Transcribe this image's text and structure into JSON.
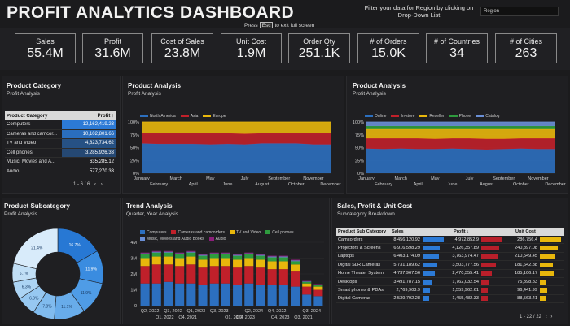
{
  "header": {
    "title": "PROFIT ANALYTICS DASHBOARD",
    "filter_text": "Filter your data for Region by clicking on Drop-Down List",
    "region_value": "Region",
    "esc_pre": "Press",
    "esc_key": "Esc",
    "esc_post": "to exit full screen"
  },
  "kpis": [
    {
      "label": "Sales",
      "value": "55.4M"
    },
    {
      "label": "Profit",
      "value": "31.6M"
    },
    {
      "label": "Cost of Sales",
      "value": "23.8M"
    },
    {
      "label": "Unit Cost",
      "value": "1.9M"
    },
    {
      "label": "Order Qty",
      "value": "251.1K"
    },
    {
      "label": "# of Orders",
      "value": "15.0K"
    },
    {
      "label": "# of Countries",
      "value": "34"
    },
    {
      "label": "# of Cities",
      "value": "263"
    }
  ],
  "product_category": {
    "title": "Product Category",
    "subtitle": "Profit Analysis",
    "col1": "Product Category",
    "col2": "Profit ↑",
    "rows": [
      {
        "name": "Computers",
        "value": "12,162,419.23",
        "level": 1.0
      },
      {
        "name": "Cameras and camcor...",
        "value": "10,102,801.66",
        "level": 0.83
      },
      {
        "name": "TV and Video",
        "value": "4,823,734.62",
        "level": 0.4
      },
      {
        "name": "Cell phones",
        "value": "3,285,926.33",
        "level": 0.27
      },
      {
        "name": "Music, Movies and A...",
        "value": "635,285.12",
        "level": 0.05
      },
      {
        "name": "Audio",
        "value": "577,270.33",
        "level": 0.05
      }
    ],
    "pager": "1 - 6 / 6"
  },
  "product_analysis_region": {
    "title": "Product Analysis",
    "subtitle": "Profit Analysis",
    "chart_data": {
      "type": "area",
      "stacked_percent": true,
      "x": [
        "January",
        "February",
        "March",
        "April",
        "May",
        "June",
        "July",
        "August",
        "September",
        "October",
        "November",
        "December"
      ],
      "ylim": [
        0,
        100
      ],
      "yticks": [
        "0%",
        "25%",
        "50%",
        "75%",
        "100%"
      ],
      "legend": "top-left",
      "series": [
        {
          "name": "North America",
          "color": "#2c6fbf",
          "values": [
            58,
            57,
            57,
            57,
            56,
            57,
            56,
            58,
            58,
            58,
            56,
            56
          ]
        },
        {
          "name": "Asia",
          "color": "#c0202a",
          "values": [
            20,
            21,
            21,
            21,
            22,
            21,
            21,
            20,
            20,
            20,
            22,
            22
          ]
        },
        {
          "name": "Europe",
          "color": "#e8b70c",
          "values": [
            22,
            22,
            22,
            22,
            22,
            22,
            23,
            22,
            22,
            22,
            22,
            22
          ]
        }
      ]
    }
  },
  "product_analysis_channel": {
    "title": "Product Analysis",
    "subtitle": "Profit Analysis",
    "chart_data": {
      "type": "area",
      "stacked_percent": true,
      "x": [
        "January",
        "February",
        "March",
        "April",
        "May",
        "June",
        "July",
        "August",
        "September",
        "October",
        "November",
        "December"
      ],
      "ylim": [
        0,
        100
      ],
      "yticks": [
        "0%",
        "25%",
        "50%",
        "75%",
        "100%"
      ],
      "legend": "top-left",
      "series": [
        {
          "name": "Online",
          "color": "#2c6fbf",
          "values": [
            48,
            47,
            48,
            47,
            47,
            48,
            47,
            46,
            47,
            48,
            47,
            47
          ]
        },
        {
          "name": "In-store",
          "color": "#c0202a",
          "values": [
            20,
            21,
            20,
            21,
            20,
            20,
            21,
            21,
            20,
            20,
            21,
            21
          ]
        },
        {
          "name": "Reseller",
          "color": "#e8b70c",
          "values": [
            18,
            18,
            18,
            18,
            19,
            18,
            18,
            19,
            19,
            18,
            18,
            18
          ]
        },
        {
          "name": "Phone",
          "color": "#2e9b3e",
          "values": [
            6,
            6,
            6,
            6,
            6,
            6,
            6,
            6,
            6,
            6,
            6,
            6
          ]
        },
        {
          "name": "Catalog",
          "color": "#6a8fd6",
          "values": [
            8,
            8,
            8,
            8,
            8,
            8,
            8,
            8,
            8,
            8,
            8,
            8
          ]
        }
      ]
    }
  },
  "product_subcategory": {
    "title": "Product Subcategory",
    "subtitle": "Profit Analysis",
    "chart_data": {
      "type": "pie",
      "donut": true,
      "slices": [
        {
          "label": "16.7%",
          "value": 16.7,
          "color": "#2778d4"
        },
        {
          "label": "11.9%",
          "value": 11.9,
          "color": "#3a8ce0"
        },
        {
          "label": "11.9%",
          "value": 11.9,
          "color": "#4f9ce6"
        },
        {
          "label": "11.1%",
          "value": 11.1,
          "color": "#68acea"
        },
        {
          "label": "7.8%",
          "value": 7.8,
          "color": "#80bbee"
        },
        {
          "label": "6.9%",
          "value": 6.9,
          "color": "#97c8f1"
        },
        {
          "label": "6.3%",
          "value": 6.3,
          "color": "#acd4f4"
        },
        {
          "label": "6.7%",
          "value": 6.7,
          "color": "#c1dff6"
        },
        {
          "label": "21.4%",
          "value": 21.4,
          "color": "#d8ebfa"
        }
      ]
    }
  },
  "trend_analysis": {
    "title": "Trend Analysis",
    "subtitle": "Quarter, Year Analysis",
    "chart_data": {
      "type": "bar",
      "stacked": true,
      "ylim": [
        0,
        4
      ],
      "yticks": [
        "0",
        "1M",
        "2M",
        "3M",
        "4M"
      ],
      "legend": "top",
      "categories": [
        "Q1",
        "Q2",
        "Q3",
        "Q4",
        "Q1",
        "Q2",
        "Q3",
        "Q4",
        "Q1",
        "Q2",
        "Q3",
        "Q4",
        "Q1",
        "Q2",
        "Q3",
        "Q4"
      ],
      "xlabels_top": [
        "Q2, 2022",
        "Q3, 2022",
        "Q1, 2023",
        "Q3, 2023",
        "Q2, 2024",
        "Q4, 2022",
        "Q3, 2024"
      ],
      "xlabels_bottom": [
        "Q1, 2022",
        "Q4, 2021",
        "Q1, 2024",
        "Q2, 2023",
        "Q4, 2023",
        "Q3, 2021"
      ],
      "series": [
        {
          "name": "Computers",
          "color": "#2c6fbf",
          "values": [
            1.4,
            1.4,
            1.5,
            1.4,
            1.4,
            1.3,
            1.4,
            1.4,
            1.3,
            1.4,
            1.3,
            1.3,
            1.3,
            1.2,
            0.7,
            0.6
          ]
        },
        {
          "name": "Cameras and camcorders",
          "color": "#c0202a",
          "values": [
            1.1,
            1.2,
            1.1,
            1.1,
            1.2,
            1.1,
            1.1,
            1.1,
            1.1,
            1.1,
            1.1,
            1.0,
            1.0,
            1.0,
            0.5,
            0.4
          ]
        },
        {
          "name": "TV and Video",
          "color": "#e8b70c",
          "values": [
            0.5,
            0.5,
            0.5,
            0.5,
            0.5,
            0.5,
            0.5,
            0.5,
            0.5,
            0.5,
            0.5,
            0.5,
            0.5,
            0.4,
            0.2,
            0.2
          ]
        },
        {
          "name": "Cell phones",
          "color": "#2e9b3e",
          "values": [
            0.25,
            0.25,
            0.25,
            0.25,
            0.25,
            0.25,
            0.25,
            0.25,
            0.25,
            0.25,
            0.25,
            0.25,
            0.25,
            0.2,
            0.1,
            0.1
          ]
        },
        {
          "name": "Music, Movies and Audio Books",
          "color": "#6a8fd6",
          "values": [
            0.05,
            0.05,
            0.05,
            0.05,
            0.05,
            0.05,
            0.05,
            0.05,
            0.05,
            0.05,
            0.05,
            0.05,
            0.05,
            0.05,
            0.03,
            0.03
          ]
        },
        {
          "name": "Audio",
          "color": "#8b1f7a",
          "values": [
            0.05,
            0.05,
            0.05,
            0.05,
            0.05,
            0.05,
            0.05,
            0.05,
            0.05,
            0.05,
            0.05,
            0.05,
            0.05,
            0.05,
            0.03,
            0.03
          ]
        }
      ]
    }
  },
  "sales_profit": {
    "title": "Sales, Profit & Unit Cost",
    "subtitle": "Subcategory Breakdown",
    "col1": "Product Sub Category",
    "col2": "Sales",
    "col3": "Profit ↓",
    "col4": "Unit Cost",
    "rows": [
      {
        "name": "Camcorders",
        "sales": "8,456,120.92",
        "sales_level": 1.0,
        "profit": "4,972,852.9",
        "profit_level": 1.0,
        "unit": "286,756.4",
        "unit_level": 1.0
      },
      {
        "name": "Projectors & Screens",
        "sales": "6,916,598.29",
        "sales_level": 0.82,
        "profit": "4,126,357.89",
        "profit_level": 0.83,
        "unit": "240,897.08",
        "unit_level": 0.84
      },
      {
        "name": "Laptops",
        "sales": "6,403,174.09",
        "sales_level": 0.76,
        "profit": "3,763,974.47",
        "profit_level": 0.76,
        "unit": "210,549.45",
        "unit_level": 0.73
      },
      {
        "name": "Digital SLR Cameras",
        "sales": "5,731,189.62",
        "sales_level": 0.68,
        "profit": "3,503,777.56",
        "profit_level": 0.7,
        "unit": "181,642.88",
        "unit_level": 0.63
      },
      {
        "name": "Home Theater System",
        "sales": "4,737,967.56",
        "sales_level": 0.56,
        "profit": "2,470,355.41",
        "profit_level": 0.5,
        "unit": "185,106.17",
        "unit_level": 0.65
      },
      {
        "name": "Desktops",
        "sales": "3,491,787.15",
        "sales_level": 0.41,
        "profit": "1,762,032.54",
        "profit_level": 0.35,
        "unit": "75,398.83",
        "unit_level": 0.26
      },
      {
        "name": "Smart phones & PDAs",
        "sales": "2,769,903.9",
        "sales_level": 0.33,
        "profit": "1,559,962.61",
        "profit_level": 0.31,
        "unit": "96,441.99",
        "unit_level": 0.34
      },
      {
        "name": "Digital Cameras",
        "sales": "2,539,792.28",
        "sales_level": 0.3,
        "profit": "1,455,482.33",
        "profit_level": 0.29,
        "unit": "88,563.41",
        "unit_level": 0.31
      }
    ],
    "pager": "1 - 22 / 22",
    "colors": {
      "sales": "#2c7ad6",
      "profit": "#b81f2a",
      "unit": "#e8b70c"
    }
  }
}
